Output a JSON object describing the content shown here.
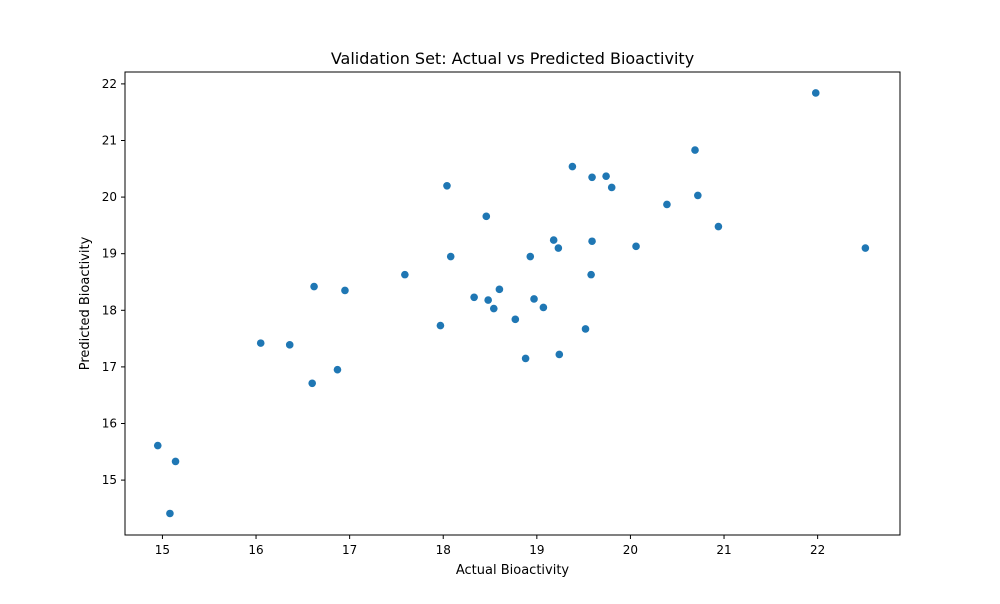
{
  "chart_data": {
    "type": "scatter",
    "title": "Validation Set: Actual vs Predicted Bioactivity",
    "xlabel": "Actual Bioactivity",
    "ylabel": "Predicted Bioactivity",
    "xlim": [
      14.6,
      22.88
    ],
    "ylim": [
      14.03,
      22.21
    ],
    "xticks": [
      15,
      16,
      17,
      18,
      19,
      20,
      21,
      22
    ],
    "yticks": [
      15,
      16,
      17,
      18,
      19,
      20,
      21,
      22
    ],
    "grid": false,
    "marker_color": "#1f77b4",
    "points": [
      {
        "x": 14.95,
        "y": 15.61
      },
      {
        "x": 15.14,
        "y": 15.33
      },
      {
        "x": 15.08,
        "y": 14.41
      },
      {
        "x": 16.05,
        "y": 17.42
      },
      {
        "x": 16.36,
        "y": 17.39
      },
      {
        "x": 16.6,
        "y": 16.71
      },
      {
        "x": 16.62,
        "y": 18.42
      },
      {
        "x": 16.87,
        "y": 16.95
      },
      {
        "x": 16.95,
        "y": 18.35
      },
      {
        "x": 17.59,
        "y": 18.63
      },
      {
        "x": 17.97,
        "y": 17.73
      },
      {
        "x": 18.04,
        "y": 20.2
      },
      {
        "x": 18.08,
        "y": 18.95
      },
      {
        "x": 18.33,
        "y": 18.23
      },
      {
        "x": 18.46,
        "y": 19.66
      },
      {
        "x": 18.48,
        "y": 18.18
      },
      {
        "x": 18.54,
        "y": 18.03
      },
      {
        "x": 18.6,
        "y": 18.37
      },
      {
        "x": 18.77,
        "y": 17.84
      },
      {
        "x": 18.88,
        "y": 17.15
      },
      {
        "x": 18.93,
        "y": 18.95
      },
      {
        "x": 18.97,
        "y": 18.2
      },
      {
        "x": 19.07,
        "y": 18.05
      },
      {
        "x": 19.18,
        "y": 19.24
      },
      {
        "x": 19.23,
        "y": 19.1
      },
      {
        "x": 19.24,
        "y": 17.22
      },
      {
        "x": 19.38,
        "y": 20.54
      },
      {
        "x": 19.52,
        "y": 17.67
      },
      {
        "x": 19.58,
        "y": 18.63
      },
      {
        "x": 19.59,
        "y": 20.35
      },
      {
        "x": 19.59,
        "y": 19.22
      },
      {
        "x": 19.74,
        "y": 20.37
      },
      {
        "x": 19.8,
        "y": 20.17
      },
      {
        "x": 20.06,
        "y": 19.13
      },
      {
        "x": 20.39,
        "y": 19.87
      },
      {
        "x": 20.69,
        "y": 20.83
      },
      {
        "x": 20.72,
        "y": 20.03
      },
      {
        "x": 20.94,
        "y": 19.48
      },
      {
        "x": 21.98,
        "y": 21.84
      },
      {
        "x": 22.51,
        "y": 19.1
      }
    ]
  }
}
